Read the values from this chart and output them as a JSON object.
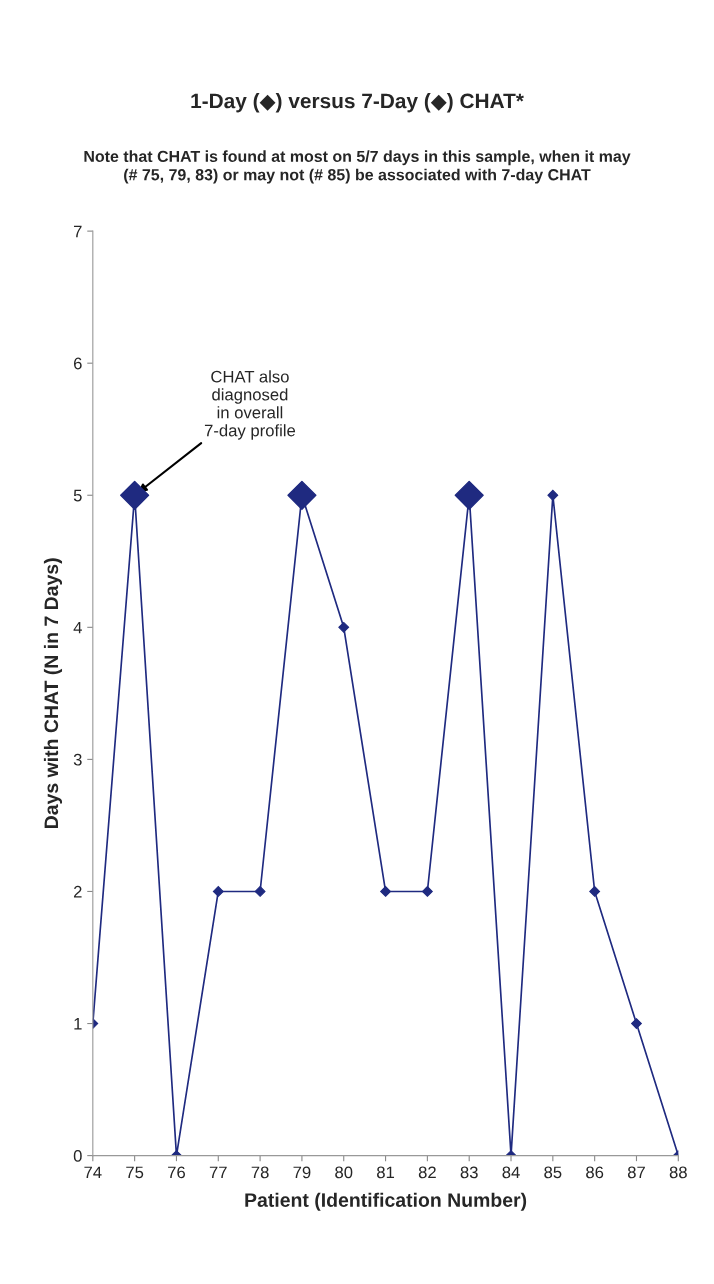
{
  "chart_data": {
    "type": "line",
    "title": "1-Day (◆) versus 7-Day (◆) CHAT*",
    "subtitle": "Note that CHAT is found at most on 5/7 days in this sample, when it may\n(# 75, 79, 83) or may not (# 85) be associated with 7-day CHAT",
    "xlabel": "Patient (Identification Number)",
    "ylabel": "Days with CHAT (N in 7 Days)",
    "x": [
      74,
      75,
      76,
      77,
      78,
      79,
      80,
      81,
      82,
      83,
      84,
      85,
      86,
      87,
      88
    ],
    "xlim": [
      74,
      88
    ],
    "xticks": [
      74,
      75,
      76,
      77,
      78,
      79,
      80,
      81,
      82,
      83,
      84,
      85,
      86,
      87,
      88
    ],
    "ylim": [
      0,
      7
    ],
    "yticks": [
      0,
      1,
      2,
      3,
      4,
      5,
      6,
      7
    ],
    "series": [
      {
        "color": "#1f2a80",
        "values": [
          1,
          5,
          0,
          2,
          2,
          5,
          4,
          2,
          2,
          5,
          0,
          5,
          2,
          1,
          0
        ]
      },
      {
        "type": "scatter",
        "color": "#1f2a80",
        "x": [
          75,
          79,
          83
        ],
        "values": [
          5,
          5,
          5
        ]
      }
    ],
    "marker": "diamond",
    "grid": false,
    "annotations": [
      {
        "text": "CHAT also\ndiagnosed\nin overall\n7-day profile",
        "x": 75,
        "y": 5
      }
    ]
  }
}
